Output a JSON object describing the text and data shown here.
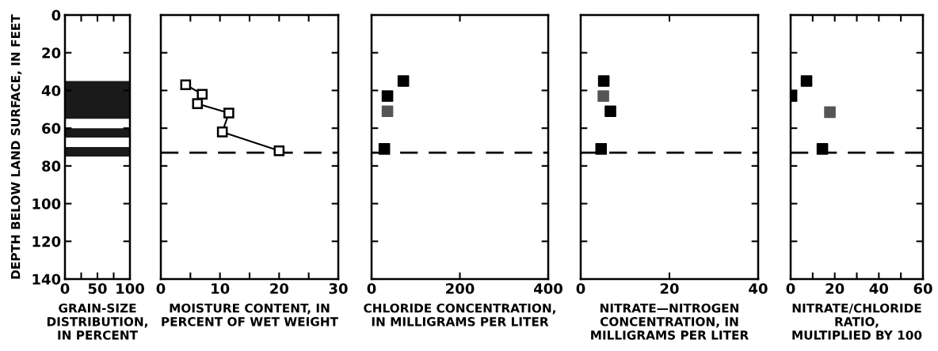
{
  "chart_data": [
    {
      "type": "bar",
      "ylabel": "DEPTH BELOW LAND SURFACE, IN FEET",
      "xlabel": "GRAIN-SIZE\nDISTRIBUTION,\nIN PERCENT",
      "xlim": [
        0,
        100
      ],
      "xticks": [
        0,
        {
          "value": 25,
          "label": null
        },
        50,
        {
          "value": 75,
          "label": null
        },
        100
      ],
      "ylim": [
        140,
        0
      ],
      "yticks": [
        0,
        20,
        40,
        60,
        80,
        100,
        120,
        140
      ],
      "bands": [
        {
          "axis": "y",
          "from": 35,
          "to": 55,
          "color": "#1a1a1a"
        },
        {
          "axis": "y",
          "from": 60,
          "to": 65,
          "color": "#1a1a1a"
        },
        {
          "axis": "y",
          "from": 70,
          "to": 75,
          "color": "#1a1a1a"
        }
      ]
    },
    {
      "type": "line",
      "xlabel": "MOISTURE CONTENT, IN\nPERCENT OF WET WEIGHT",
      "xlim": [
        0,
        30
      ],
      "xticks": [
        0,
        {
          "value": 5,
          "label": null
        },
        10,
        {
          "value": 15,
          "label": null
        },
        20,
        {
          "value": 25,
          "label": null
        },
        30
      ],
      "ylim": [
        140,
        0
      ],
      "yticks": [
        {
          "value": 0,
          "label": null
        },
        {
          "value": 20,
          "label": null
        },
        {
          "value": 40,
          "label": null
        },
        {
          "value": 60,
          "label": null
        },
        {
          "value": 80,
          "label": null
        },
        {
          "value": 100,
          "label": null
        },
        {
          "value": 120,
          "label": null
        },
        {
          "value": 140,
          "label": null
        }
      ],
      "tick_labels": "x",
      "marker": "square",
      "line_style": "solid",
      "series": [
        {
          "color": "#000000",
          "x": [
            4.2,
            7.0,
            6.2,
            11.5,
            10.4,
            20.0
          ],
          "values": [
            37,
            42,
            47,
            52,
            62,
            72
          ]
        }
      ],
      "ref_lines": [
        {
          "axis": "y",
          "value": 73,
          "line_style": "dashed",
          "color": "#000000"
        }
      ]
    },
    {
      "type": "scatter",
      "xlabel": "CHLORIDE CONCENTRATION,\nIN MILLIGRAMS PER LITER",
      "xlim": [
        0,
        400
      ],
      "xticks": [
        0,
        200,
        400
      ],
      "ylim": [
        140,
        0
      ],
      "yticks": [
        {
          "value": 0,
          "label": null
        },
        {
          "value": 20,
          "label": null
        },
        {
          "value": 40,
          "label": null
        },
        {
          "value": 60,
          "label": null
        },
        {
          "value": 80,
          "label": null
        },
        {
          "value": 100,
          "label": null
        },
        {
          "value": 120,
          "label": null
        },
        {
          "value": 140,
          "label": null
        }
      ],
      "tick_labels": "x",
      "marker": "square",
      "series": [
        {
          "colors": [
            "#000000",
            "#000000",
            "#555555",
            "#000000"
          ],
          "x": [
            72,
            36,
            36,
            29
          ],
          "values": [
            35,
            43,
            51,
            71
          ]
        }
      ],
      "ref_lines": [
        {
          "axis": "y",
          "value": 73,
          "line_style": "dashed",
          "color": "#000000"
        }
      ]
    },
    {
      "type": "scatter",
      "xlabel": "NITRATE—NITROGEN\nCONCENTRATION, IN\nMILLIGRAMS PER LITER",
      "xlim": [
        0,
        40
      ],
      "xticks": [
        0,
        20,
        40
      ],
      "ylim": [
        140,
        0
      ],
      "yticks": [
        {
          "value": 0,
          "label": null
        },
        {
          "value": 20,
          "label": null
        },
        {
          "value": 40,
          "label": null
        },
        {
          "value": 60,
          "label": null
        },
        {
          "value": 80,
          "label": null
        },
        {
          "value": 100,
          "label": null
        },
        {
          "value": 120,
          "label": null
        },
        {
          "value": 140,
          "label": null
        }
      ],
      "tick_labels": "x",
      "marker": "square",
      "series": [
        {
          "colors": [
            "#000000",
            "#555555",
            "#000000",
            "#000000"
          ],
          "x": [
            5.2,
            5.1,
            6.7,
            4.6
          ],
          "values": [
            35,
            43,
            51,
            71
          ]
        }
      ],
      "ref_lines": [
        {
          "axis": "y",
          "value": 73,
          "line_style": "dashed",
          "color": "#000000"
        }
      ]
    },
    {
      "type": "scatter",
      "xlabel": "NITRATE/CHLORIDE\nRATIO,\nMULTIPLIED BY 100",
      "xlim": [
        0,
        60
      ],
      "xticks": [
        0,
        {
          "value": 10,
          "label": null
        },
        20,
        {
          "value": 30,
          "label": null
        },
        40,
        {
          "value": 50,
          "label": null
        },
        60
      ],
      "ylim": [
        140,
        0
      ],
      "yticks": [
        {
          "value": 0,
          "label": null
        },
        {
          "value": 20,
          "label": null
        },
        {
          "value": 40,
          "label": null
        },
        {
          "value": 60,
          "label": null
        },
        {
          "value": 80,
          "label": null
        },
        {
          "value": 100,
          "label": null
        },
        {
          "value": 120,
          "label": null
        },
        {
          "value": 140,
          "label": null
        }
      ],
      "tick_labels": "x",
      "marker": "square",
      "series": [
        {
          "colors": [
            "#000000",
            "#000000",
            "#555555",
            "#000000"
          ],
          "x": [
            7.2,
            0.4,
            17.8,
            14.4
          ],
          "values": [
            35,
            43,
            51.5,
            71
          ]
        }
      ],
      "ref_lines": [
        {
          "axis": "y",
          "value": 73,
          "line_style": "dashed",
          "color": "#000000"
        }
      ]
    }
  ]
}
